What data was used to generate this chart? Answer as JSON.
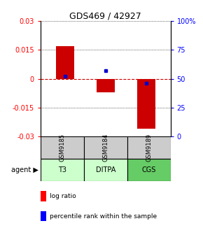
{
  "title": "GDS469 / 42927",
  "samples": [
    "GSM9185",
    "GSM9184",
    "GSM9189"
  ],
  "agents": [
    "T3",
    "DITPA",
    "CGS"
  ],
  "log_ratios": [
    0.017,
    -0.007,
    -0.026
  ],
  "bar_tops": [
    0.017,
    0.0,
    0.0
  ],
  "bar_bottoms": [
    0.0,
    -0.007,
    -0.026
  ],
  "percentile_ranks": [
    52,
    57,
    46
  ],
  "ylim_left": [
    -0.03,
    0.03
  ],
  "yticks_left": [
    -0.03,
    -0.015,
    0,
    0.015,
    0.03
  ],
  "yticks_right": [
    0,
    25,
    50,
    75,
    100
  ],
  "bar_color": "#cc0000",
  "dot_color": "#0000cc",
  "sample_bg": "#cccccc",
  "agent_row_colors": [
    "#ccffcc",
    "#ccffcc",
    "#66cc66"
  ],
  "zero_line_color": "#cc0000",
  "bar_width": 0.45,
  "title_fontsize": 9
}
